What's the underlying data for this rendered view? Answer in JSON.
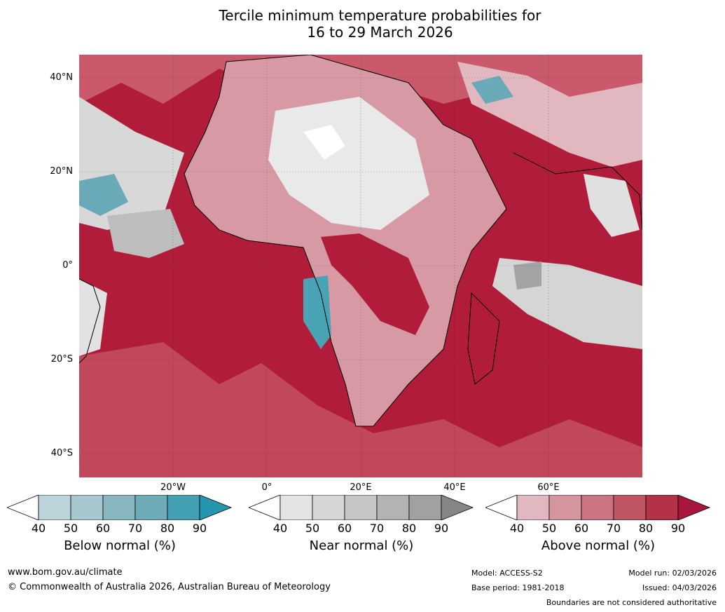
{
  "title": {
    "line1": "Tercile minimum temperature probabilities for",
    "line2": "16 to 29 March 2026"
  },
  "axes": {
    "lat_labels": [
      "40°N",
      "20°N",
      "0°",
      "20°S",
      "40°S"
    ],
    "lon_labels": [
      "20°W",
      "0°",
      "20°E",
      "40°E",
      "60°E"
    ]
  },
  "colorbars": [
    {
      "label": "Below normal (%)",
      "ticks": [
        "40",
        "50",
        "60",
        "70",
        "80",
        "90"
      ],
      "colors": [
        "#ffffff",
        "#bcd4da",
        "#a6c7ce",
        "#88b6c1",
        "#6cabb7",
        "#43a0b2",
        "#2596ad"
      ]
    },
    {
      "label": "Near normal (%)",
      "ticks": [
        "40",
        "50",
        "60",
        "70",
        "80",
        "90"
      ],
      "colors": [
        "#ffffff",
        "#e4e4e4",
        "#d6d6d6",
        "#c6c6c6",
        "#b3b3b3",
        "#a1a1a1",
        "#858585"
      ]
    },
    {
      "label": "Above normal (%)",
      "ticks": [
        "40",
        "50",
        "60",
        "70",
        "80",
        "90"
      ],
      "colors": [
        "#ffffff",
        "#e1b8bf",
        "#d4959f",
        "#c97480",
        "#bf5666",
        "#b33248",
        "#a8173b"
      ]
    }
  ],
  "footer": {
    "website": "www.bom.gov.au/climate",
    "copyright": "© Commonwealth of Australia 2026, Australian Bureau of Meteorology",
    "model": "Model: ACCESS-S2",
    "base_period": "Base period: 1981-2018",
    "model_run": "Model run: 02/03/2026",
    "issued": "Issued: 04/03/2026",
    "disclaimer": "Boundaries are not considered authoritative"
  },
  "map_colors": {
    "ocean_above": "#b01c3a",
    "land_mixed": "#d9a0aa",
    "near_normal": "#d8d8d8",
    "below_normal": "#6aaab8",
    "coast": "#000000",
    "borders": "#7a7a7a"
  }
}
